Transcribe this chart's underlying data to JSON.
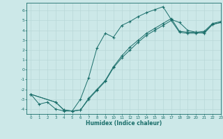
{
  "xlabel": "Humidex (Indice chaleur)",
  "ylabel": "",
  "bg_color": "#cce8e8",
  "line_color": "#1a6e6a",
  "grid_color": "#b8d8d8",
  "xlim": [
    -0.5,
    23
  ],
  "ylim": [
    -4.5,
    6.8
  ],
  "xticks": [
    0,
    1,
    2,
    3,
    4,
    5,
    6,
    7,
    8,
    9,
    10,
    11,
    12,
    13,
    14,
    15,
    16,
    17,
    18,
    19,
    20,
    21,
    22,
    23
  ],
  "yticks": [
    -4,
    -3,
    -2,
    -1,
    0,
    1,
    2,
    3,
    4,
    5,
    6
  ],
  "line1": {
    "x": [
      0,
      1,
      2,
      3,
      4,
      5,
      6,
      7,
      8,
      9,
      10,
      11,
      12,
      13,
      14,
      15,
      16,
      17,
      18,
      19,
      20,
      21,
      22,
      23
    ],
    "y": [
      -2.5,
      -3.5,
      -3.3,
      -4.0,
      -4.2,
      -4.2,
      -3.0,
      -0.8,
      2.2,
      3.7,
      3.3,
      4.5,
      4.9,
      5.4,
      5.8,
      6.1,
      6.4,
      5.1,
      4.8,
      4.0,
      3.8,
      3.7,
      4.6,
      4.8
    ]
  },
  "line2": {
    "x": [
      0,
      3,
      4,
      5,
      6,
      7,
      8,
      9,
      10,
      11,
      12,
      13,
      14,
      15,
      16,
      17,
      18,
      19,
      20,
      21,
      22,
      23
    ],
    "y": [
      -2.5,
      -3.3,
      -4.1,
      -4.2,
      -4.1,
      -3.0,
      -2.1,
      -1.2,
      0.2,
      1.2,
      2.0,
      2.8,
      3.5,
      4.0,
      4.5,
      5.0,
      3.8,
      3.7,
      3.7,
      3.8,
      4.6,
      4.8
    ]
  },
  "line3": {
    "x": [
      0,
      3,
      4,
      5,
      6,
      7,
      8,
      9,
      10,
      11,
      12,
      13,
      14,
      15,
      16,
      17,
      18,
      19,
      20,
      21,
      22,
      23
    ],
    "y": [
      -2.5,
      -3.3,
      -4.1,
      -4.2,
      -4.1,
      -2.9,
      -2.0,
      -1.1,
      0.3,
      1.4,
      2.3,
      3.0,
      3.7,
      4.2,
      4.7,
      5.2,
      3.9,
      3.8,
      3.8,
      3.9,
      4.7,
      4.9
    ]
  },
  "figsize": [
    3.2,
    2.0
  ],
  "dpi": 100
}
